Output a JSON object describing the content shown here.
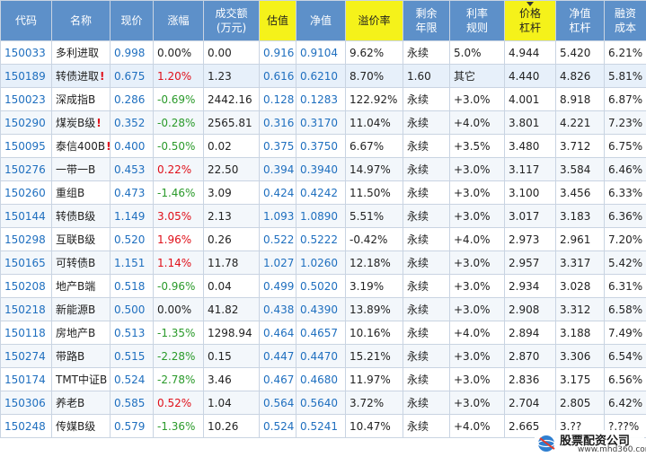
{
  "headers": [
    "代码",
    "名称",
    "现价",
    "涨幅",
    "成交额\n(万元)",
    "估值",
    "净值",
    "溢价率",
    "剩余\n年限",
    "利率\n规则",
    "价格\n杠杆",
    "净值\n杠杆",
    "融资\n成本"
  ],
  "highlight_cols": [
    5,
    7,
    10
  ],
  "sort_col": 10,
  "rows": [
    {
      "code": "150033",
      "name": "多利进取",
      "bang": false,
      "price": "0.998",
      "change": "0.00%",
      "dir": "zero",
      "volume": "0.00",
      "est": "0.916",
      "nav": "0.9104",
      "premium": "9.62%",
      "years": "永续",
      "rate": "5.0%",
      "plev": "4.944",
      "nlev": "5.420",
      "cost": "6.21%"
    },
    {
      "code": "150189",
      "name": "转债进取",
      "bang": true,
      "price": "0.675",
      "change": "1.20%",
      "dir": "pos",
      "volume": "1.23",
      "est": "0.616",
      "nav": "0.6210",
      "premium": "8.70%",
      "years": "1.60",
      "rate": "其它",
      "plev": "4.440",
      "nlev": "4.826",
      "cost": "5.81%"
    },
    {
      "code": "150023",
      "name": "深成指B",
      "bang": false,
      "price": "0.286",
      "change": "-0.69%",
      "dir": "neg",
      "volume": "2442.16",
      "est": "0.128",
      "nav": "0.1283",
      "premium": "122.92%",
      "years": "永续",
      "rate": "+3.0%",
      "plev": "4.001",
      "nlev": "8.918",
      "cost": "6.87%"
    },
    {
      "code": "150290",
      "name": "煤炭B级",
      "bang": true,
      "price": "0.352",
      "change": "-0.28%",
      "dir": "neg",
      "volume": "2565.81",
      "est": "0.316",
      "nav": "0.3170",
      "premium": "11.04%",
      "years": "永续",
      "rate": "+4.0%",
      "plev": "3.801",
      "nlev": "4.221",
      "cost": "7.23%"
    },
    {
      "code": "150095",
      "name": "泰信400B",
      "bang": true,
      "price": "0.400",
      "change": "-0.50%",
      "dir": "neg",
      "volume": "0.02",
      "est": "0.375",
      "nav": "0.3750",
      "premium": "6.67%",
      "years": "永续",
      "rate": "+3.5%",
      "plev": "3.480",
      "nlev": "3.712",
      "cost": "6.75%"
    },
    {
      "code": "150276",
      "name": "一带一B",
      "bang": false,
      "price": "0.453",
      "change": "0.22%",
      "dir": "pos",
      "volume": "22.50",
      "est": "0.394",
      "nav": "0.3940",
      "premium": "14.97%",
      "years": "永续",
      "rate": "+3.0%",
      "plev": "3.117",
      "nlev": "3.584",
      "cost": "6.46%"
    },
    {
      "code": "150260",
      "name": "重组B",
      "bang": false,
      "price": "0.473",
      "change": "-1.46%",
      "dir": "neg",
      "volume": "3.09",
      "est": "0.424",
      "nav": "0.4242",
      "premium": "11.50%",
      "years": "永续",
      "rate": "+3.0%",
      "plev": "3.100",
      "nlev": "3.456",
      "cost": "6.33%"
    },
    {
      "code": "150144",
      "name": "转债B级",
      "bang": false,
      "price": "1.149",
      "change": "3.05%",
      "dir": "pos",
      "volume": "2.13",
      "est": "1.093",
      "nav": "1.0890",
      "premium": "5.51%",
      "years": "永续",
      "rate": "+3.0%",
      "plev": "3.017",
      "nlev": "3.183",
      "cost": "6.36%"
    },
    {
      "code": "150298",
      "name": "互联B级",
      "bang": false,
      "price": "0.520",
      "change": "1.96%",
      "dir": "pos",
      "volume": "0.26",
      "est": "0.522",
      "nav": "0.5222",
      "premium": "-0.42%",
      "years": "永续",
      "rate": "+4.0%",
      "plev": "2.973",
      "nlev": "2.961",
      "cost": "7.20%"
    },
    {
      "code": "150165",
      "name": "可转债B",
      "bang": false,
      "price": "1.151",
      "change": "1.14%",
      "dir": "pos",
      "volume": "11.78",
      "est": "1.027",
      "nav": "1.0260",
      "premium": "12.18%",
      "years": "永续",
      "rate": "+3.0%",
      "plev": "2.957",
      "nlev": "3.317",
      "cost": "5.42%"
    },
    {
      "code": "150208",
      "name": "地产B端",
      "bang": false,
      "price": "0.518",
      "change": "-0.96%",
      "dir": "neg",
      "volume": "0.04",
      "est": "0.499",
      "nav": "0.5020",
      "premium": "3.19%",
      "years": "永续",
      "rate": "+3.0%",
      "plev": "2.934",
      "nlev": "3.028",
      "cost": "6.31%"
    },
    {
      "code": "150218",
      "name": "新能源B",
      "bang": false,
      "price": "0.500",
      "change": "0.00%",
      "dir": "zero",
      "volume": "41.82",
      "est": "0.438",
      "nav": "0.4390",
      "premium": "13.89%",
      "years": "永续",
      "rate": "+3.0%",
      "plev": "2.908",
      "nlev": "3.312",
      "cost": "6.58%"
    },
    {
      "code": "150118",
      "name": "房地产B",
      "bang": false,
      "price": "0.513",
      "change": "-1.35%",
      "dir": "neg",
      "volume": "1298.94",
      "est": "0.464",
      "nav": "0.4657",
      "premium": "10.16%",
      "years": "永续",
      "rate": "+4.0%",
      "plev": "2.894",
      "nlev": "3.188",
      "cost": "7.49%"
    },
    {
      "code": "150274",
      "name": "带路B",
      "bang": false,
      "price": "0.515",
      "change": "-2.28%",
      "dir": "neg",
      "volume": "0.15",
      "est": "0.447",
      "nav": "0.4470",
      "premium": "15.21%",
      "years": "永续",
      "rate": "+3.0%",
      "plev": "2.870",
      "nlev": "3.306",
      "cost": "6.54%"
    },
    {
      "code": "150174",
      "name": "TMT中证B",
      "bang": false,
      "price": "0.524",
      "change": "-2.78%",
      "dir": "neg",
      "volume": "3.46",
      "est": "0.467",
      "nav": "0.4680",
      "premium": "11.97%",
      "years": "永续",
      "rate": "+3.0%",
      "plev": "2.836",
      "nlev": "3.175",
      "cost": "6.56%"
    },
    {
      "code": "150306",
      "name": "养老B",
      "bang": false,
      "price": "0.585",
      "change": "0.52%",
      "dir": "pos",
      "volume": "1.04",
      "est": "0.564",
      "nav": "0.5640",
      "premium": "3.72%",
      "years": "永续",
      "rate": "+3.0%",
      "plev": "2.704",
      "nlev": "2.805",
      "cost": "6.42%"
    },
    {
      "code": "150248",
      "name": "传媒B级",
      "bang": false,
      "price": "0.579",
      "change": "-1.36%",
      "dir": "neg",
      "volume": "10.26",
      "est": "0.524",
      "nav": "0.5241",
      "premium": "10.47%",
      "years": "永续",
      "rate": "+4.0%",
      "plev": "2.665",
      "nlev": "3.??",
      "cost": "?.??%"
    }
  ],
  "watermark": {
    "title": "股票配资公司",
    "url": "www.mhd360.com",
    "logo": "globe-logo-icon"
  },
  "colors": {
    "header_bg": "#5d90c9",
    "highlight": "#f5f21a",
    "link_blue": "#1f6fbf",
    "up_red": "#e0101a",
    "down_green": "#2a9a2a"
  }
}
